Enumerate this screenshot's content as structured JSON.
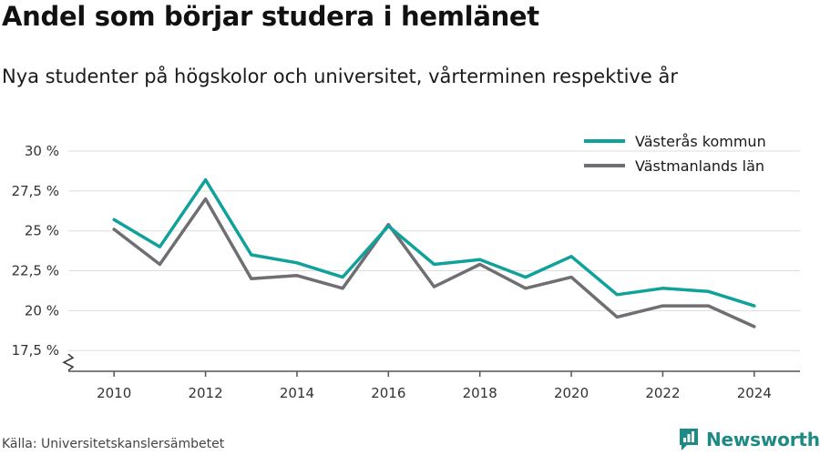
{
  "header": {
    "title": "Andel som börjar studera i hemlänet",
    "subtitle": "Nya studenter på högskolor och universitet, vårterminen respektive år"
  },
  "footer": {
    "source": "Källa: Universitetskanslersämbetet",
    "brand": "Newsworthy"
  },
  "colors": {
    "series_1": "#10a29a",
    "series_2": "#6e6e73",
    "grid": "#dddddd",
    "axis": "#555555",
    "brand": "#1d8a86"
  },
  "chart_data": {
    "type": "line",
    "title": "Andel som börjar studera i hemlänet",
    "subtitle": "Nya studenter på högskolor och universitet, vårterminen respektive år",
    "x": [
      2010,
      2011,
      2012,
      2013,
      2014,
      2015,
      2016,
      2017,
      2018,
      2019,
      2020,
      2021,
      2022,
      2023,
      2024
    ],
    "x_ticks": [
      2010,
      2012,
      2014,
      2016,
      2018,
      2020,
      2022,
      2024
    ],
    "y_ticks": [
      17.5,
      20,
      22.5,
      25,
      27.5,
      30
    ],
    "y_tick_labels": [
      "17,5 %",
      "20 %",
      "22,5 %",
      "25 %",
      "27,5 %",
      "30 %"
    ],
    "ylim": [
      16.2,
      31.2
    ],
    "y_axis_break": true,
    "grid": "horizontal",
    "legend_position": "top-right",
    "series": [
      {
        "name": "Västerås kommun",
        "color": "#10a29a",
        "values": [
          25.7,
          24.0,
          28.2,
          23.5,
          23.0,
          22.1,
          25.3,
          22.9,
          23.2,
          22.1,
          23.4,
          21.0,
          21.4,
          21.2,
          20.3
        ]
      },
      {
        "name": "Västmanlands län",
        "color": "#6e6e73",
        "values": [
          25.1,
          22.9,
          27.0,
          22.0,
          22.2,
          21.4,
          25.4,
          21.5,
          22.9,
          21.4,
          22.1,
          19.6,
          20.3,
          20.3,
          19.0
        ]
      }
    ]
  }
}
